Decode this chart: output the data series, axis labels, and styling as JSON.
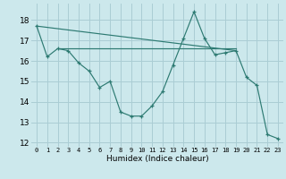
{
  "xlabel": "Humidex (Indice chaleur)",
  "background_color": "#cce8ec",
  "grid_color": "#aacdd4",
  "line_color": "#2d7a72",
  "xlim": [
    -0.5,
    23.5
  ],
  "ylim": [
    11.8,
    18.8
  ],
  "yticks": [
    12,
    13,
    14,
    15,
    16,
    17,
    18
  ],
  "xticks": [
    0,
    1,
    2,
    3,
    4,
    5,
    6,
    7,
    8,
    9,
    10,
    11,
    12,
    13,
    14,
    15,
    16,
    17,
    18,
    19,
    20,
    21,
    22,
    23
  ],
  "line1_x": [
    0,
    1,
    2,
    3,
    4,
    5,
    6,
    7,
    8,
    9,
    10,
    11,
    12,
    13,
    14,
    15,
    16,
    17,
    18,
    19,
    20,
    21,
    22,
    23
  ],
  "line1_y": [
    17.7,
    16.2,
    16.6,
    16.5,
    15.9,
    15.5,
    14.7,
    15.0,
    13.5,
    13.3,
    13.3,
    13.8,
    14.5,
    15.8,
    17.1,
    18.4,
    17.1,
    16.3,
    16.4,
    16.5,
    15.2,
    14.8,
    12.4,
    12.2
  ],
  "line2_x": [
    2,
    3,
    4,
    5,
    6,
    7,
    8,
    9,
    10,
    11,
    12,
    13,
    14,
    15,
    16,
    17,
    18,
    19
  ],
  "line2_y": [
    16.6,
    16.6,
    16.6,
    16.6,
    16.6,
    16.6,
    16.6,
    16.6,
    16.6,
    16.6,
    16.6,
    16.6,
    16.6,
    16.6,
    16.6,
    16.6,
    16.6,
    16.6
  ],
  "line3_x": [
    0,
    19
  ],
  "line3_y": [
    17.7,
    16.5
  ]
}
